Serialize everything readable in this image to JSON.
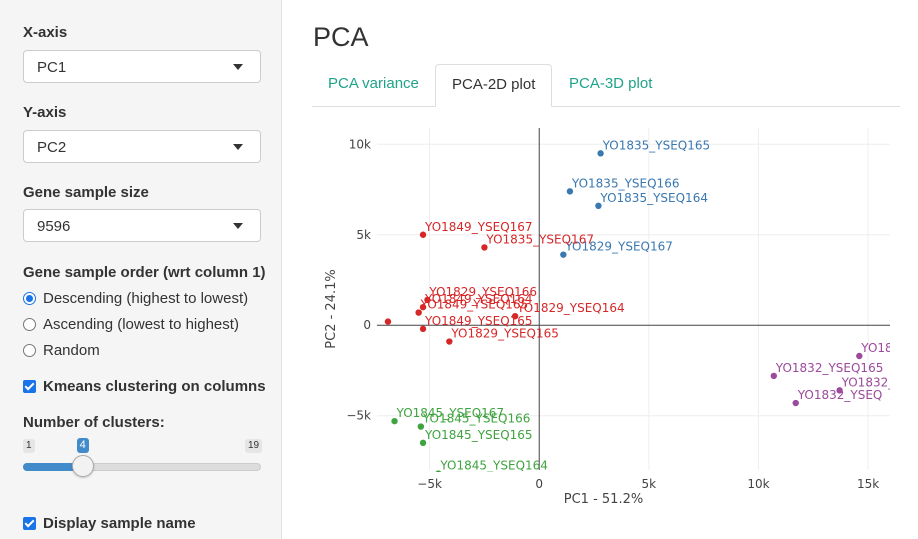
{
  "sidebar": {
    "xaxis": {
      "label": "X-axis",
      "value": "PC1"
    },
    "yaxis": {
      "label": "Y-axis",
      "value": "PC2"
    },
    "gene_sample_size": {
      "label": "Gene sample size",
      "value": "9596"
    },
    "gene_sample_order": {
      "label": "Gene sample order (wrt column 1)",
      "options": [
        "Descending (highest to lowest)",
        "Ascending (lowest to highest)",
        "Random"
      ],
      "selected": 0
    },
    "kmeans": {
      "label": "Kmeans clustering on columns",
      "checked": true
    },
    "clusters": {
      "label": "Number of clusters:",
      "min": "1",
      "max": "19",
      "value": "4",
      "fraction": 0.1667
    },
    "display_sample_name": {
      "label": "Display sample name",
      "checked": true
    }
  },
  "main": {
    "title": "PCA",
    "tabs": [
      {
        "label": "PCA variance",
        "active": false
      },
      {
        "label": "PCA-2D plot",
        "active": true
      },
      {
        "label": "PCA-3D plot",
        "active": false
      }
    ]
  },
  "chart_data": {
    "type": "scatter",
    "xlabel": "PC1 - 51.2%",
    "ylabel": "PC2 - 24.1%",
    "xlim": [
      -7400,
      16000
    ],
    "ylim": [
      -8000,
      10900
    ],
    "xticks": [
      -5000,
      0,
      5000,
      10000,
      15000
    ],
    "xtick_labels": [
      "−5k",
      "0",
      "5k",
      "10k",
      "15k"
    ],
    "yticks": [
      -5000,
      0,
      5000,
      10000
    ],
    "ytick_labels": [
      "−5k",
      "0",
      "5k",
      "10k"
    ],
    "grid": true,
    "series": [
      {
        "color": "#3a78b0",
        "points": [
          {
            "x": 2800,
            "y": 9500,
            "label": "YO1835_YSEQ165"
          },
          {
            "x": 1400,
            "y": 7400,
            "label": "YO1835_YSEQ166"
          },
          {
            "x": 2700,
            "y": 6600,
            "label": "YO1835_YSEQ164"
          },
          {
            "x": 1100,
            "y": 3900,
            "label": "YO1829_YSEQ167"
          }
        ]
      },
      {
        "color": "#d62728",
        "points": [
          {
            "x": -5300,
            "y": 5000,
            "label": "YO1849_YSEQ167"
          },
          {
            "x": -2500,
            "y": 4300,
            "label": "YO1835_YSEQ167"
          },
          {
            "x": -5100,
            "y": 1400,
            "label": "YO1829_YSEQ166"
          },
          {
            "x": -5300,
            "y": 1000,
            "label": "YO1849_YSEQ164"
          },
          {
            "x": -5500,
            "y": 700,
            "label": "YO1849_YSEQ165"
          },
          {
            "x": -6900,
            "y": 200,
            "label": ""
          },
          {
            "x": -1100,
            "y": 500,
            "label": "YO1829_YSEQ164"
          },
          {
            "x": -5300,
            "y": -200,
            "label": "YO1849_YSEQ165"
          },
          {
            "x": -4100,
            "y": -900,
            "label": "YO1829_YSEQ165"
          }
        ]
      },
      {
        "color": "#9b4a9c",
        "points": [
          {
            "x": 14600,
            "y": -1700,
            "label": "YO18"
          },
          {
            "x": 10700,
            "y": -2800,
            "label": "YO1832_YSEQ165"
          },
          {
            "x": 13700,
            "y": -3600,
            "label": "YO1832_"
          },
          {
            "x": 11700,
            "y": -4300,
            "label": "YO1832_YSEQ"
          }
        ]
      },
      {
        "color": "#3fa33f",
        "points": [
          {
            "x": -6600,
            "y": -5300,
            "label": "YO1845_YSEQ167"
          },
          {
            "x": -5400,
            "y": -5600,
            "label": "YO1845_YSEQ166"
          },
          {
            "x": -5300,
            "y": -6500,
            "label": "YO1845_YSEQ165"
          },
          {
            "x": -4600,
            "y": -8200,
            "label": "YO1845_YSEQ164"
          }
        ]
      }
    ]
  }
}
